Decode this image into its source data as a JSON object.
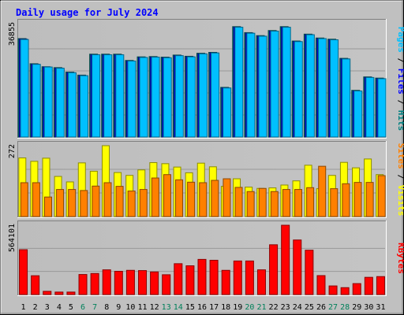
{
  "chart_data": {
    "type": "bar",
    "title": "Daily usage for July 2024",
    "categories": [
      "1",
      "2",
      "3",
      "4",
      "5",
      "6",
      "7",
      "8",
      "9",
      "10",
      "11",
      "12",
      "13",
      "14",
      "15",
      "16",
      "17",
      "18",
      "19",
      "20",
      "21",
      "22",
      "23",
      "24",
      "25",
      "26",
      "27",
      "28",
      "29",
      "30",
      "31"
    ],
    "weekend_days": [
      "6",
      "7",
      "13",
      "14",
      "20",
      "21",
      "27",
      "28"
    ],
    "panels": [
      {
        "name": "hits-files-pages",
        "ylabel_parts": [
          {
            "text": "Pages",
            "color": "#00c0ff"
          },
          {
            "text": " / ",
            "color": "#000000"
          },
          {
            "text": "Files",
            "color": "#0000ff"
          },
          {
            "text": " / ",
            "color": "#000000"
          },
          {
            "text": "Hits",
            "color": "#008080"
          }
        ],
        "max_label": "36855",
        "ymax": 36855,
        "series": [
          {
            "name": "Hits",
            "color": "#008080",
            "values": [
              32900,
              24500,
              23500,
              23200,
              21700,
              20700,
              27700,
              27700,
              27700,
              25600,
              26800,
              26900,
              26700,
              27400,
              27000,
              28000,
              28300,
              16600,
              36900,
              34900,
              33900,
              35600,
              36900,
              32100,
              34400,
              33100,
              32700,
              26300,
              15600,
              20100,
              19700
            ]
          },
          {
            "name": "Files",
            "color": "#0000ff",
            "values": [
              32700,
              24300,
              23400,
              23000,
              21500,
              20500,
              27500,
              27500,
              27500,
              25400,
              26600,
              26700,
              26500,
              27200,
              26800,
              27800,
              28100,
              16400,
              36700,
              34700,
              33700,
              35400,
              36700,
              31900,
              34200,
              32900,
              32500,
              26100,
              15400,
              19900,
              19500
            ]
          },
          {
            "name": "Pages",
            "color": "#00c0ff",
            "values": [
              32600,
              24300,
              23400,
              23000,
              21500,
              20500,
              27500,
              27500,
              27500,
              25400,
              26600,
              26700,
              26500,
              27200,
              26800,
              27800,
              28100,
              16400,
              36700,
              34700,
              33700,
              35400,
              36700,
              31900,
              34200,
              32900,
              32500,
              26100,
              15400,
              19900,
              19500
            ]
          }
        ]
      },
      {
        "name": "visits-sites",
        "ylabel_parts": [
          {
            "text": "Sites",
            "color": "#ff8000"
          },
          {
            "text": " / ",
            "color": "#000000"
          },
          {
            "text": "Visits",
            "color": "#ffff00"
          }
        ],
        "max_label": "272",
        "ymax": 272,
        "series": [
          {
            "name": "Visits",
            "color": "#ffff00",
            "values": [
              225,
              212,
              224,
              154,
              133,
              206,
              174,
              272,
              169,
              158,
              179,
              207,
              203,
              190,
              168,
              205,
              191,
              116,
              145,
              113,
              108,
              110,
              121,
              137,
              197,
              107,
              158,
              208,
              187,
              221,
              161
            ]
          },
          {
            "name": "Sites",
            "color": "#ff8000",
            "values": [
              130,
              130,
              75,
              104,
              104,
              100,
              117,
              130,
              116,
              98,
              104,
              148,
              161,
              141,
              132,
              130,
              139,
              145,
              112,
              96,
              108,
              96,
              104,
              104,
              111,
              193,
              107,
              126,
              131,
              131,
              157
            ]
          }
        ]
      },
      {
        "name": "kbytes",
        "ylabel_parts": [
          {
            "text": "KBytes",
            "color": "#ff0000"
          }
        ],
        "max_label": "564101",
        "ymax": 564101,
        "series": [
          {
            "name": "KBytes",
            "color": "#ff0000",
            "values": [
              365000,
              153000,
              26000,
              20000,
              20000,
              163000,
              171000,
              201000,
              189000,
              197000,
              195000,
              184000,
              161000,
              251000,
              234000,
              286000,
              279000,
              197000,
              273000,
              273000,
              201000,
              405000,
              564000,
              444000,
              361000,
              154000,
              70000,
              56000,
              89000,
              140000,
              146000
            ]
          }
        ]
      }
    ]
  }
}
